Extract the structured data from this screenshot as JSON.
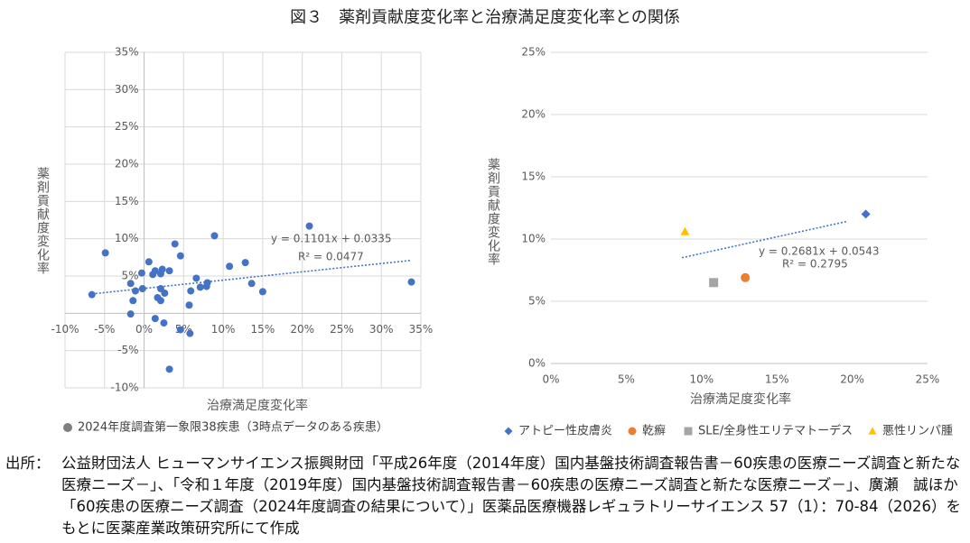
{
  "title": "図３　薬剤貢献度変化率と治療満足度変化率との関係",
  "source_label": "出所：",
  "source": "公益財団法人 ヒューマンサイエンス振興財団「平成26年度（2014年度）国内基盤技術調査報告書－60疾患の医療ニーズ調査と新たな医療ニーズ－」、「令和１年度（2019年度）国内基盤技術調査報告書－60疾患の医療ニーズ調査と新たな医療ニーズ－」、廣瀬　誠ほか「60疾患の医療ニーズ調査（2024年度調査の結果について）」医薬品医療機器レギュラトリーサイエンス 57（1）：70-84（2026）をもとに医薬産業政策研究所にて作成",
  "chart_data": [
    {
      "type": "scatter",
      "xlabel": "治療満足度変化率",
      "ylabel": "薬剤貢献度変化率",
      "xlim": [
        -10,
        35
      ],
      "ylim": [
        -10,
        35
      ],
      "grid": "both",
      "axes_cross_at_zero": true,
      "xticks": [
        {
          "value": -10,
          "label": "-10%"
        },
        {
          "value": -5,
          "label": "-5%"
        },
        {
          "value": 0,
          "label": "0%"
        },
        {
          "value": 5,
          "label": "5%"
        },
        {
          "value": 10,
          "label": "10%"
        },
        {
          "value": 15,
          "label": "15%"
        },
        {
          "value": 20,
          "label": "20%"
        },
        {
          "value": 25,
          "label": "25%"
        },
        {
          "value": 30,
          "label": "30%"
        },
        {
          "value": 35,
          "label": "35%"
        }
      ],
      "yticks": [
        {
          "value": -10,
          "label": "-10%"
        },
        {
          "value": -5,
          "label": "-5%"
        },
        {
          "value": 5,
          "label": "5%"
        },
        {
          "value": 10,
          "label": "10%"
        },
        {
          "value": 15,
          "label": "15%"
        },
        {
          "value": 20,
          "label": "20%"
        },
        {
          "value": 25,
          "label": "25%"
        },
        {
          "value": 30,
          "label": "30%"
        },
        {
          "value": 35,
          "label": "35%"
        }
      ],
      "series": [
        {
          "name": "2024年度調査第一象限38疾患（3時点データのある疾患）",
          "color": "#4472c4",
          "legend_color": "#7f7f7f",
          "marker": "circle",
          "x": [
            -6.6,
            -4.9,
            -1.7,
            -1.1,
            -1.4,
            -1.7,
            -0.3,
            -0.2,
            0.6,
            1.1,
            1.4,
            1.7,
            2.1,
            2.3,
            2.1,
            2.1,
            2.6,
            2.5,
            1.4,
            3.2,
            3.9,
            3.2,
            4.6,
            4.6,
            5.8,
            5.7,
            5.9,
            6.6,
            7.1,
            7.9,
            8.0,
            8.9,
            10.8,
            12.8,
            13.6,
            15.0,
            20.9,
            33.8
          ],
          "values": [
            2.5,
            8.1,
            4.0,
            3.0,
            1.7,
            -0.1,
            5.4,
            3.3,
            6.9,
            5.2,
            5.7,
            2.1,
            5.3,
            5.9,
            3.3,
            1.7,
            2.7,
            -1.3,
            -0.7,
            5.7,
            9.3,
            -7.5,
            7.7,
            -2.2,
            -2.7,
            1.1,
            3.0,
            4.7,
            3.5,
            3.6,
            4.1,
            10.4,
            6.3,
            6.8,
            4.0,
            2.9,
            11.7,
            4.2
          ]
        }
      ],
      "trendline": {
        "x": [
          -6.6,
          33.8
        ],
        "y": [
          2.6,
          7.1
        ],
        "color": "#4472c4"
      },
      "annotations": [
        "y = 0.1101x + 0.0335",
        "R² = 0.0477"
      ]
    },
    {
      "type": "scatter",
      "xlabel": "治療満足度変化率",
      "ylabel": "薬剤貢献度変化率",
      "xlim": [
        0,
        25
      ],
      "ylim": [
        0,
        25
      ],
      "grid": "y",
      "axes_cross_at_zero": false,
      "xticks": [
        {
          "value": 0,
          "label": "0%"
        },
        {
          "value": 5,
          "label": "5%"
        },
        {
          "value": 10,
          "label": "10%"
        },
        {
          "value": 15,
          "label": "15%"
        },
        {
          "value": 20,
          "label": "20%"
        },
        {
          "value": 25,
          "label": "25%"
        }
      ],
      "yticks": [
        {
          "value": 0,
          "label": "0%"
        },
        {
          "value": 5,
          "label": "5%"
        },
        {
          "value": 10,
          "label": "10%"
        },
        {
          "value": 15,
          "label": "15%"
        },
        {
          "value": 20,
          "label": "20%"
        },
        {
          "value": 25,
          "label": "25%"
        }
      ],
      "series": [
        {
          "name": "アトピー性皮膚炎",
          "color": "#4472c4",
          "marker": "diamond",
          "x": [
            20.9
          ],
          "values": [
            12.0
          ]
        },
        {
          "name": "乾癬",
          "color": "#ed7d31",
          "marker": "circle",
          "x": [
            12.9
          ],
          "values": [
            6.9
          ]
        },
        {
          "name": "SLE/全身性エリテマトーデス",
          "color": "#a5a5a5",
          "marker": "square",
          "x": [
            10.8
          ],
          "values": [
            6.5
          ]
        },
        {
          "name": "悪性リンパ腫",
          "color": "#ffc000",
          "marker": "triangle",
          "x": [
            8.9
          ],
          "values": [
            10.6
          ]
        }
      ],
      "trendline": {
        "x": [
          8.7,
          19.6
        ],
        "y": [
          8.5,
          11.4
        ],
        "color": "#4472c4"
      },
      "annotations": [
        "y = 0.2681x + 0.0543",
        "R² = 0.2795"
      ]
    }
  ]
}
